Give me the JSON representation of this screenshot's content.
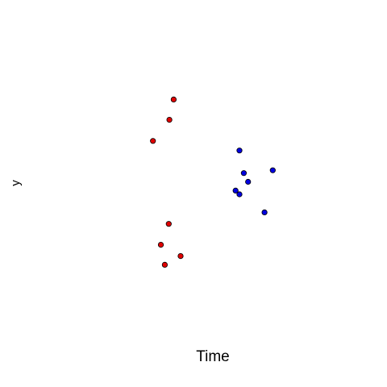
{
  "chart_data": {
    "type": "scatter",
    "title": "",
    "xlabel": "Time",
    "ylabel": "y",
    "xlim": [
      0,
      1
    ],
    "ylim": [
      0,
      1
    ],
    "grid": false,
    "axes_visible": false,
    "series": [
      {
        "color": "#e00000",
        "points": [
          {
            "x": 0.381,
            "y": 0.819
          },
          {
            "x": 0.368,
            "y": 0.747
          },
          {
            "x": 0.318,
            "y": 0.672
          },
          {
            "x": 0.366,
            "y": 0.378
          },
          {
            "x": 0.342,
            "y": 0.304
          },
          {
            "x": 0.402,
            "y": 0.264
          },
          {
            "x": 0.354,
            "y": 0.233
          }
        ]
      },
      {
        "color": "#0000e0",
        "points": [
          {
            "x": 0.581,
            "y": 0.638
          },
          {
            "x": 0.594,
            "y": 0.558
          },
          {
            "x": 0.607,
            "y": 0.527
          },
          {
            "x": 0.569,
            "y": 0.496
          },
          {
            "x": 0.581,
            "y": 0.483
          },
          {
            "x": 0.682,
            "y": 0.568
          },
          {
            "x": 0.657,
            "y": 0.419
          }
        ]
      }
    ]
  }
}
